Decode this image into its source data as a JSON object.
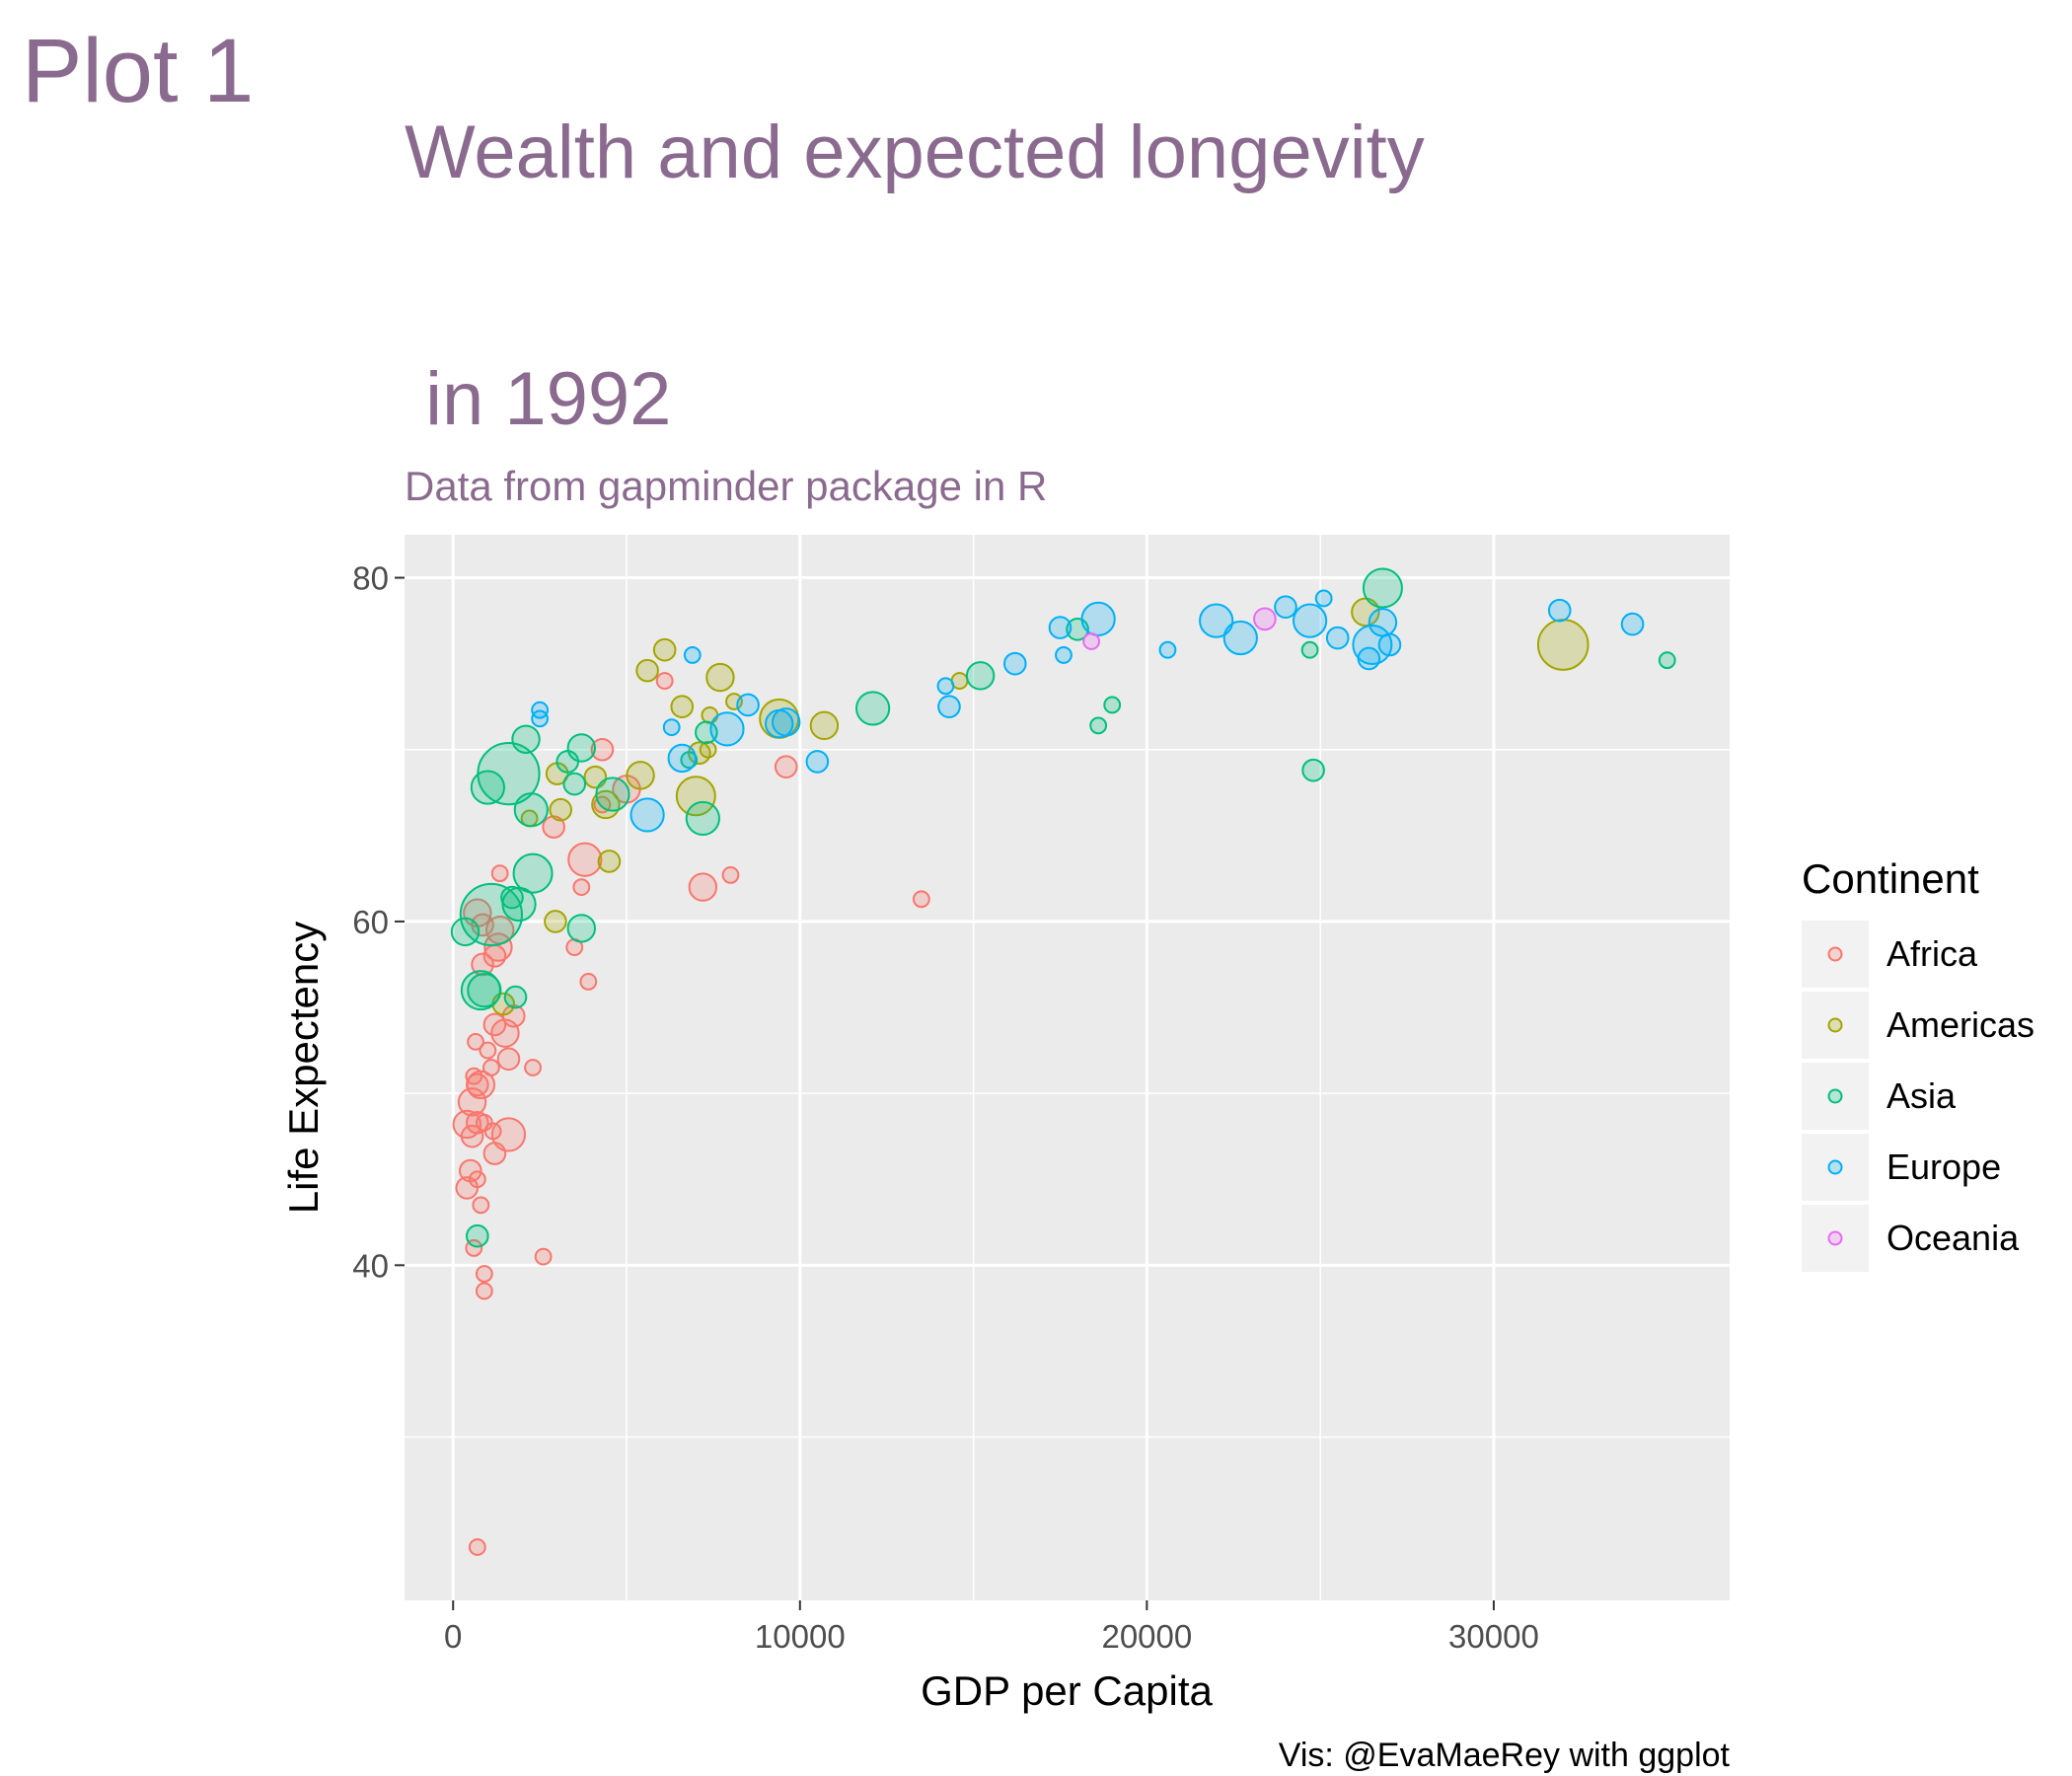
{
  "page": {
    "heading": "Plot 1",
    "caption": "Vis: @EvaMaeRey with ggplot"
  },
  "colors": {
    "title": "#8b6a8f",
    "panel": "#ebebeb",
    "grid": "#ffffff",
    "Africa": "#F8766D",
    "Americas": "#A3A500",
    "Asia": "#00BF7D",
    "Europe": "#00B0F6",
    "Oceania": "#E76BF3"
  },
  "chart_data": {
    "type": "scatter",
    "title_line1": "Wealth and expected longevity",
    "title_line2": " in 1992",
    "subtitle": "Data from gapminder package in R",
    "xlabel": "GDP per Capita",
    "ylabel": "Life Expectency",
    "xlim": [
      -1400,
      36800
    ],
    "ylim": [
      20.5,
      82.5
    ],
    "x_ticks": [
      0,
      10000,
      20000,
      30000
    ],
    "y_ticks": [
      40,
      60,
      80
    ],
    "legend": {
      "title": "Continent",
      "position": "right",
      "entries": [
        "Africa",
        "Americas",
        "Asia",
        "Europe",
        "Oceania"
      ]
    },
    "size_note": "point size encodes population (relative 1-10)",
    "series": [
      {
        "name": "Africa",
        "points": [
          [
            700,
            23.6,
            2
          ],
          [
            2600,
            40.5,
            2
          ],
          [
            900,
            38.5,
            2
          ],
          [
            900,
            39.5,
            2
          ],
          [
            600,
            41,
            2
          ],
          [
            800,
            43.5,
            2
          ],
          [
            700,
            45,
            2
          ],
          [
            400,
            44.5,
            3
          ],
          [
            500,
            45.5,
            3
          ],
          [
            1200,
            46.5,
            3
          ],
          [
            550,
            47.5,
            3
          ],
          [
            1150,
            47.8,
            2
          ],
          [
            1600,
            47.6,
            5
          ],
          [
            700,
            48.3,
            3
          ],
          [
            900,
            48.3,
            2
          ],
          [
            400,
            48.2,
            4
          ],
          [
            550,
            49.5,
            4
          ],
          [
            700,
            50.5,
            3
          ],
          [
            800,
            50.5,
            4
          ],
          [
            600,
            51,
            2
          ],
          [
            1100,
            51.5,
            2
          ],
          [
            2300,
            51.5,
            2
          ],
          [
            1600,
            52,
            3
          ],
          [
            1000,
            52.5,
            2
          ],
          [
            650,
            53,
            2
          ],
          [
            1500,
            53.5,
            4
          ],
          [
            1200,
            54,
            3
          ],
          [
            1750,
            54.5,
            3
          ],
          [
            3900,
            56.5,
            2
          ],
          [
            850,
            57.5,
            3
          ],
          [
            1200,
            58,
            3
          ],
          [
            1300,
            58.5,
            4
          ],
          [
            3500,
            58.5,
            2
          ],
          [
            1350,
            59.5,
            4
          ],
          [
            850,
            59.8,
            3
          ],
          [
            700,
            60.5,
            4
          ],
          [
            3700,
            62,
            2
          ],
          [
            1350,
            62.8,
            2
          ],
          [
            7200,
            62,
            4
          ],
          [
            8000,
            62.7,
            2
          ],
          [
            13500,
            61.3,
            2
          ],
          [
            3800,
            63.6,
            5
          ],
          [
            2900,
            65.5,
            3
          ],
          [
            4300,
            66.8,
            2
          ],
          [
            5000,
            67.7,
            4
          ],
          [
            4300,
            70,
            3
          ],
          [
            9600,
            69,
            3
          ],
          [
            6100,
            74,
            2
          ]
        ]
      },
      {
        "name": "Americas",
        "points": [
          [
            1450,
            55.2,
            3
          ],
          [
            2950,
            60,
            3
          ],
          [
            4500,
            63.5,
            3
          ],
          [
            2200,
            66,
            2
          ],
          [
            3100,
            66.5,
            3
          ],
          [
            4400,
            66.8,
            4
          ],
          [
            7000,
            67.3,
            6
          ],
          [
            3000,
            68.6,
            3
          ],
          [
            4100,
            68.4,
            3
          ],
          [
            5400,
            68.5,
            4
          ],
          [
            7100,
            69.8,
            3
          ],
          [
            7350,
            70,
            2
          ],
          [
            10700,
            71.4,
            4
          ],
          [
            9400,
            71.8,
            6
          ],
          [
            7400,
            72,
            2
          ],
          [
            6600,
            72.5,
            3
          ],
          [
            8100,
            72.8,
            2
          ],
          [
            7700,
            74.2,
            4
          ],
          [
            14600,
            74,
            2
          ],
          [
            5600,
            74.6,
            3
          ],
          [
            6100,
            75.8,
            3
          ],
          [
            26300,
            78,
            4
          ],
          [
            32000,
            76.1,
            8
          ]
        ]
      },
      {
        "name": "Asia",
        "points": [
          [
            700,
            41.7,
            3
          ],
          [
            900,
            56,
            5
          ],
          [
            800,
            56,
            6
          ],
          [
            1800,
            55.6,
            3
          ],
          [
            350,
            59.4,
            4
          ],
          [
            1100,
            60.4,
            10
          ],
          [
            1700,
            61.4,
            3
          ],
          [
            1900,
            61,
            5
          ],
          [
            3700,
            59.6,
            4
          ],
          [
            2300,
            62.8,
            6
          ],
          [
            1000,
            67.8,
            5
          ],
          [
            1600,
            68.6,
            10
          ],
          [
            2250,
            66.5,
            5
          ],
          [
            4600,
            67.4,
            5
          ],
          [
            7200,
            66,
            5
          ],
          [
            3500,
            68,
            3
          ],
          [
            3300,
            69.3,
            3
          ],
          [
            3700,
            70.1,
            4
          ],
          [
            2100,
            70.6,
            4
          ],
          [
            7300,
            71,
            3
          ],
          [
            6800,
            69.4,
            2
          ],
          [
            12100,
            72.4,
            5
          ],
          [
            15200,
            74.3,
            4
          ],
          [
            18000,
            77,
            3
          ],
          [
            18600,
            71.4,
            2
          ],
          [
            19000,
            72.6,
            2
          ],
          [
            24700,
            75.8,
            2
          ],
          [
            24800,
            68.8,
            3
          ],
          [
            26800,
            79.4,
            6
          ],
          [
            35000,
            75.2,
            2
          ]
        ]
      },
      {
        "name": "Europe",
        "points": [
          [
            2500,
            71.8,
            2
          ],
          [
            2500,
            72.3,
            2
          ],
          [
            6300,
            71.3,
            2
          ],
          [
            7900,
            71.2,
            5
          ],
          [
            5600,
            66.2,
            5
          ],
          [
            6600,
            69.5,
            4
          ],
          [
            8500,
            72.6,
            3
          ],
          [
            9400,
            71.5,
            4
          ],
          [
            9600,
            71.6,
            4
          ],
          [
            10500,
            69.3,
            3
          ],
          [
            6900,
            75.5,
            2
          ],
          [
            14200,
            73.7,
            2
          ],
          [
            14300,
            72.5,
            3
          ],
          [
            16200,
            75,
            3
          ],
          [
            17600,
            75.5,
            2
          ],
          [
            17500,
            77.1,
            3
          ],
          [
            18600,
            77.6,
            5
          ],
          [
            20600,
            75.8,
            2
          ],
          [
            22000,
            77.5,
            5
          ],
          [
            22700,
            76.5,
            5
          ],
          [
            24000,
            78.3,
            3
          ],
          [
            24700,
            77.5,
            5
          ],
          [
            25100,
            78.8,
            2
          ],
          [
            25500,
            76.5,
            3
          ],
          [
            26400,
            75.3,
            3
          ],
          [
            26500,
            76.1,
            6
          ],
          [
            26800,
            77.4,
            4
          ],
          [
            27000,
            76.1,
            3
          ],
          [
            31900,
            78.1,
            3
          ],
          [
            34000,
            77.3,
            3
          ]
        ]
      },
      {
        "name": "Oceania",
        "points": [
          [
            18400,
            76.3,
            2
          ],
          [
            23400,
            77.6,
            3
          ]
        ]
      }
    ]
  }
}
